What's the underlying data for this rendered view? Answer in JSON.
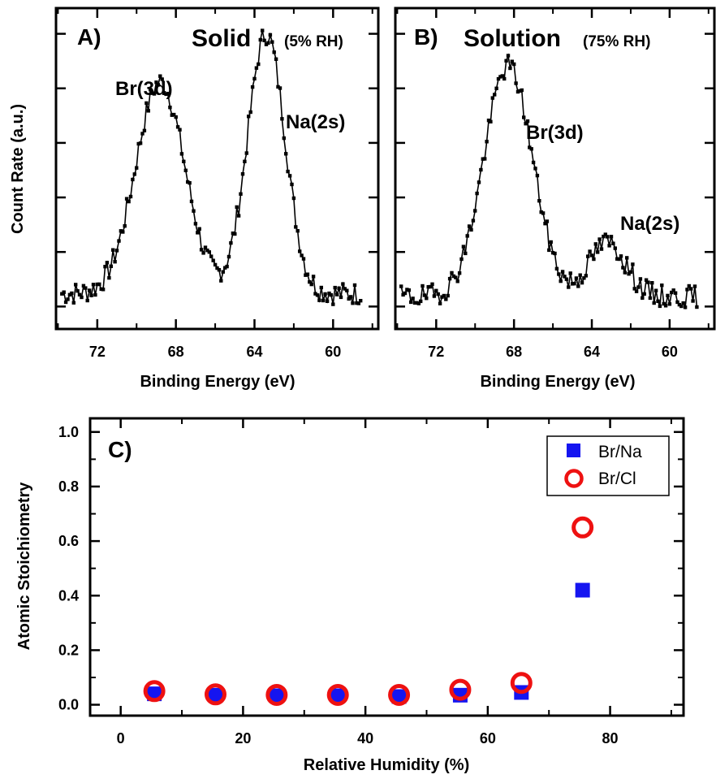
{
  "chart_data": [
    {
      "id": "A",
      "type": "line",
      "panel_label": "A)",
      "title": "Solid",
      "title_suffix": "(5% RH)",
      "xlabel": "Binding Energy (eV)",
      "ylabel": "Count Rate (a.u.)",
      "xlim": [
        74.1,
        57.7
      ],
      "ylim": [
        0,
        1
      ],
      "x_ticks": [
        "72",
        "68",
        "64",
        "60"
      ],
      "x_tick_values": [
        72,
        68,
        64,
        60
      ],
      "y_tick_labels_shown": false,
      "annotations": [
        "Br(3d)",
        "Na(2s)"
      ],
      "peaks": [
        {
          "label": "Br(3d)",
          "center": 68.8,
          "height": 0.77
        },
        {
          "label": "Na(2s)",
          "center": 63.4,
          "height": 0.92
        }
      ],
      "baseline": 0.11
    },
    {
      "id": "B",
      "type": "line",
      "panel_label": "B)",
      "title": "Solution",
      "title_suffix": "(75% RH)",
      "xlabel": "Binding Energy (eV)",
      "ylabel": "",
      "xlim": [
        74.1,
        57.7
      ],
      "ylim": [
        0,
        1
      ],
      "x_ticks": [
        "72",
        "68",
        "64",
        "60"
      ],
      "x_tick_values": [
        72,
        68,
        64,
        60
      ],
      "y_tick_labels_shown": false,
      "annotations": [
        "Br(3d)",
        "Na(2s)"
      ],
      "peaks": [
        {
          "label": "Br(3d)",
          "center": 68.3,
          "height": 0.82
        },
        {
          "label": "Na(2s)",
          "center": 63.2,
          "height": 0.27
        }
      ],
      "baseline": 0.1
    },
    {
      "id": "C",
      "type": "scatter",
      "panel_label": "C)",
      "xlabel": "Relative Humidity (%)",
      "ylabel": "Atomic Stoichiometry",
      "xlim": [
        -5,
        92
      ],
      "ylim": [
        -0.04,
        1.05
      ],
      "x_ticks": [
        "0",
        "20",
        "40",
        "60",
        "80"
      ],
      "x_tick_values": [
        0,
        20,
        40,
        60,
        80
      ],
      "y_ticks": [
        "0.0",
        "0.2",
        "0.4",
        "0.6",
        "0.8",
        "1.0"
      ],
      "y_tick_values": [
        0,
        0.2,
        0.4,
        0.6,
        0.8,
        1.0
      ],
      "legend_position": "top-right",
      "series": [
        {
          "name": "Br/Na",
          "marker": "square",
          "color": "#1515f0",
          "x": [
            5.5,
            15.5,
            25.5,
            35.5,
            45.5,
            55.5,
            65.5,
            75.5
          ],
          "y": [
            0.04,
            0.035,
            0.033,
            0.033,
            0.03,
            0.035,
            0.045,
            0.42
          ]
        },
        {
          "name": "Br/Cl",
          "marker": "open-circle",
          "color": "#ee1111",
          "x": [
            5.5,
            15.5,
            25.5,
            35.5,
            45.5,
            55.5,
            65.5,
            75.5
          ],
          "y": [
            0.05,
            0.038,
            0.036,
            0.036,
            0.036,
            0.055,
            0.08,
            0.65
          ]
        }
      ]
    }
  ]
}
